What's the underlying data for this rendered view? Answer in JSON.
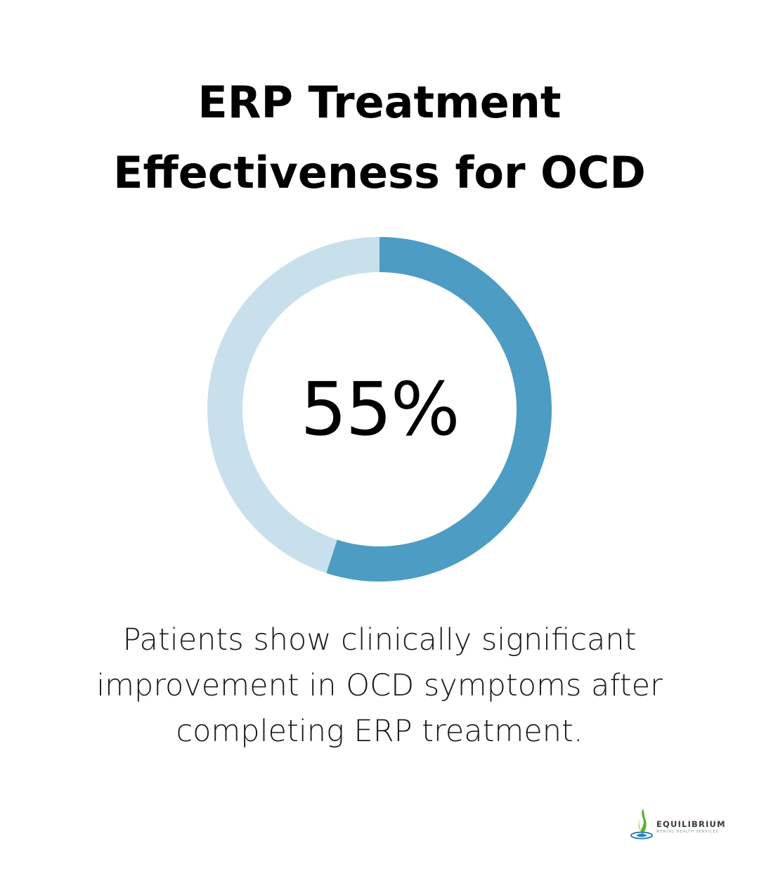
{
  "title": {
    "line1": "ERP Treatment",
    "line2": "Effectiveness for OCD"
  },
  "chart_data": {
    "type": "pie",
    "variant": "donut",
    "values": [
      55,
      45
    ],
    "center_label": "55%",
    "colors": {
      "filled": "#4d9cc3",
      "remaining": "#c8e0ec"
    }
  },
  "caption": {
    "line1": "Patients show clinically significant",
    "line2": "improvement in OCD symptoms after",
    "line3": "completing ERP treatment."
  },
  "logo": {
    "name": "EQUILIBRIUM",
    "tagline": "MENTAL HEALTH SERVICES",
    "icon": "equilibrium-leaf-logo-icon"
  }
}
